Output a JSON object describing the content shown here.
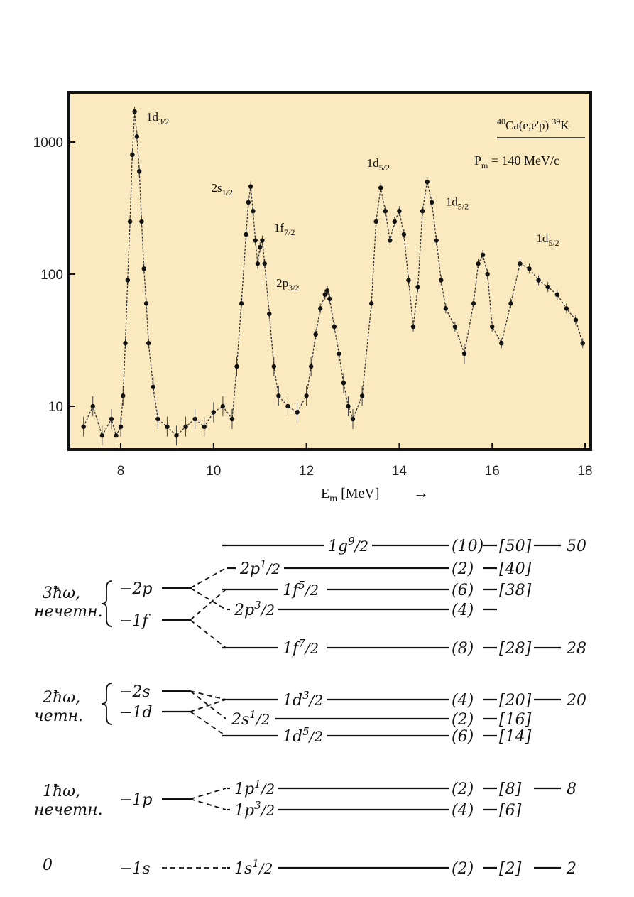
{
  "chart_data": {
    "type": "scatter",
    "title": "40Ca(e,e'p)39K",
    "subtitle": "Pm = 140 MeV/c",
    "xlabel": "Em [MeV]",
    "ylabel": "",
    "xlim": [
      7,
      18
    ],
    "ylim": [
      5,
      2200
    ],
    "y_scale": "log",
    "x_ticks": [
      8,
      10,
      12,
      14,
      16,
      18
    ],
    "y_ticks": [
      10,
      100,
      1000
    ],
    "background": "#fbe9c0",
    "grid": false,
    "series": [
      {
        "points": [
          [
            7.2,
            7
          ],
          [
            7.4,
            10
          ],
          [
            7.6,
            6
          ],
          [
            7.8,
            8
          ],
          [
            7.9,
            6
          ],
          [
            8.0,
            7
          ],
          [
            8.05,
            12
          ],
          [
            8.1,
            30
          ],
          [
            8.15,
            90
          ],
          [
            8.2,
            250
          ],
          [
            8.25,
            800
          ],
          [
            8.3,
            1700
          ],
          [
            8.35,
            1100
          ],
          [
            8.4,
            600
          ],
          [
            8.45,
            250
          ],
          [
            8.5,
            110
          ],
          [
            8.55,
            60
          ],
          [
            8.6,
            30
          ],
          [
            8.7,
            14
          ],
          [
            8.8,
            8
          ],
          [
            9.0,
            7
          ],
          [
            9.2,
            6
          ],
          [
            9.4,
            7
          ],
          [
            9.6,
            8
          ],
          [
            9.8,
            7
          ],
          [
            10.0,
            9
          ],
          [
            10.2,
            10
          ],
          [
            10.4,
            8
          ],
          [
            10.5,
            20
          ],
          [
            10.6,
            60
          ],
          [
            10.7,
            200
          ],
          [
            10.75,
            350
          ],
          [
            10.8,
            460
          ],
          [
            10.85,
            300
          ],
          [
            10.9,
            180
          ],
          [
            10.95,
            120
          ],
          [
            11.0,
            160
          ],
          [
            11.05,
            180
          ],
          [
            11.1,
            120
          ],
          [
            11.2,
            50
          ],
          [
            11.3,
            20
          ],
          [
            11.4,
            12
          ],
          [
            11.6,
            10
          ],
          [
            11.8,
            9
          ],
          [
            12.0,
            12
          ],
          [
            12.1,
            20
          ],
          [
            12.2,
            35
          ],
          [
            12.3,
            55
          ],
          [
            12.4,
            70
          ],
          [
            12.45,
            75
          ],
          [
            12.5,
            65
          ],
          [
            12.6,
            40
          ],
          [
            12.7,
            25
          ],
          [
            12.8,
            15
          ],
          [
            12.9,
            10
          ],
          [
            13.0,
            8
          ],
          [
            13.2,
            12
          ],
          [
            13.4,
            60
          ],
          [
            13.5,
            250
          ],
          [
            13.6,
            450
          ],
          [
            13.7,
            300
          ],
          [
            13.8,
            180
          ],
          [
            13.9,
            250
          ],
          [
            14.0,
            300
          ],
          [
            14.1,
            200
          ],
          [
            14.2,
            90
          ],
          [
            14.3,
            40
          ],
          [
            14.4,
            80
          ],
          [
            14.5,
            300
          ],
          [
            14.6,
            500
          ],
          [
            14.7,
            350
          ],
          [
            14.8,
            180
          ],
          [
            14.9,
            90
          ],
          [
            15.0,
            55
          ],
          [
            15.2,
            40
          ],
          [
            15.4,
            25
          ],
          [
            15.6,
            60
          ],
          [
            15.7,
            120
          ],
          [
            15.8,
            140
          ],
          [
            15.9,
            100
          ],
          [
            16.0,
            40
          ],
          [
            16.2,
            30
          ],
          [
            16.4,
            60
          ],
          [
            16.6,
            120
          ],
          [
            16.8,
            110
          ],
          [
            17.0,
            90
          ],
          [
            17.2,
            80
          ],
          [
            17.4,
            70
          ],
          [
            17.6,
            55
          ],
          [
            17.8,
            45
          ],
          [
            17.95,
            30
          ]
        ]
      }
    ],
    "peak_labels": [
      {
        "text": "1d3/2",
        "base": "1d",
        "sub": "3/2",
        "x": 8.55,
        "y": 1450
      },
      {
        "text": "2s1/2",
        "base": "2s",
        "sub": "1/2",
        "x": 9.95,
        "y": 420
      },
      {
        "text": "1f7/2",
        "base": "1f",
        "sub": "7/2",
        "x": 11.3,
        "y": 210
      },
      {
        "text": "2p3/2",
        "base": "2p",
        "sub": "3/2",
        "x": 11.35,
        "y": 80
      },
      {
        "text": "1d5/2",
        "base": "1d",
        "sub": "5/2",
        "x": 13.3,
        "y": 650
      },
      {
        "text": "1d5/2",
        "base": "1d",
        "sub": "5/2",
        "x": 15.0,
        "y": 330
      },
      {
        "text": "1d5/2",
        "base": "1d",
        "sub": "5/2",
        "x": 16.95,
        "y": 175
      }
    ],
    "axis_arrow": "→"
  },
  "shell_diagram": {
    "groups": [
      {
        "label1": "3ħω,",
        "label2": "нечетн.",
        "osc": [
          "−2p",
          "−1f"
        ]
      },
      {
        "label1": "2ħω,",
        "label2": "четн.",
        "osc": [
          "−2s",
          "−1d"
        ]
      },
      {
        "label1": "1ħω,",
        "label2": "нечетн.",
        "osc": [
          "−1p"
        ]
      },
      {
        "label1": "0",
        "label2": "",
        "osc": [
          "−1s"
        ]
      }
    ],
    "levels": [
      {
        "label": "1g9/2",
        "base": "1g",
        "sup": "9",
        "sub": "2",
        "degeneracy": "(10)",
        "cumulative": "[50]",
        "magic": "50"
      },
      {
        "label": "2p1/2",
        "base": "2p",
        "sup": "1",
        "sub": "2",
        "degeneracy": "(2)",
        "cumulative": "[40]",
        "magic": ""
      },
      {
        "label": "1f5/2",
        "base": "1f",
        "sup": "5",
        "sub": "2",
        "degeneracy": "(6)",
        "cumulative": "[38]",
        "magic": ""
      },
      {
        "label": "2p3/2",
        "base": "2p",
        "sup": "3",
        "sub": "2",
        "degeneracy": "(4)",
        "cumulative": "",
        "magic": ""
      },
      {
        "label": "1f7/2",
        "base": "1f",
        "sup": "7",
        "sub": "2",
        "degeneracy": "(8)",
        "cumulative": "[28]",
        "magic": "28"
      },
      {
        "label": "1d3/2",
        "base": "1d",
        "sup": "3",
        "sub": "2",
        "degeneracy": "(4)",
        "cumulative": "[20]",
        "magic": "20"
      },
      {
        "label": "2s1/2",
        "base": "2s",
        "sup": "1",
        "sub": "2",
        "degeneracy": "(2)",
        "cumulative": "[16]",
        "magic": ""
      },
      {
        "label": "1d5/2",
        "base": "1d",
        "sup": "5",
        "sub": "2",
        "degeneracy": "(6)",
        "cumulative": "[14]",
        "magic": ""
      },
      {
        "label": "1p1/2",
        "base": "1p",
        "sup": "1",
        "sub": "2",
        "degeneracy": "(2)",
        "cumulative": "[8]",
        "magic": "8"
      },
      {
        "label": "1p3/2",
        "base": "1p",
        "sup": "3",
        "sub": "2",
        "degeneracy": "(4)",
        "cumulative": "[6]",
        "magic": ""
      },
      {
        "label": "1s1/2",
        "base": "1s",
        "sup": "1",
        "sub": "2",
        "degeneracy": "(2)",
        "cumulative": "[2]",
        "magic": "2"
      }
    ]
  }
}
